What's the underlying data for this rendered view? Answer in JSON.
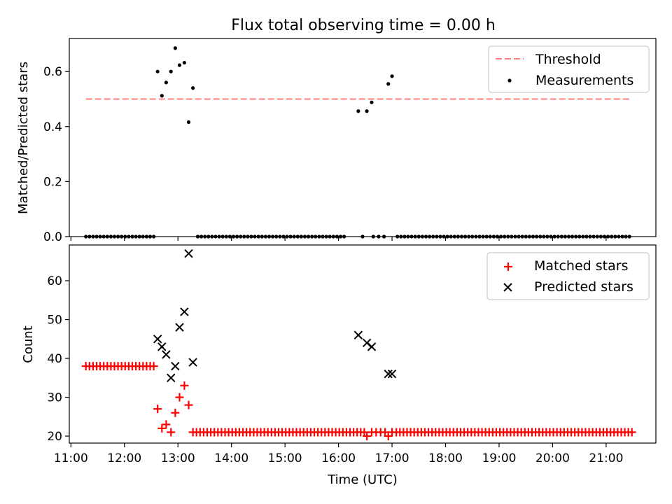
{
  "chart_data": [
    {
      "type": "scatter",
      "title": "Flux total observing time = 0.00 h",
      "ylabel": "Matched/Predicted stars",
      "xlabel": "",
      "xlim": [
        10.97,
        21.93
      ],
      "ylim": [
        0.0,
        0.72
      ],
      "yticks": [
        0.0,
        0.2,
        0.4,
        0.6
      ],
      "ytick_labels": [
        "0.0",
        "0.2",
        "0.4",
        "0.6"
      ],
      "xticks": [
        11,
        12,
        13,
        14,
        15,
        16,
        17,
        18,
        19,
        20,
        21
      ],
      "legend_loc": "upper right",
      "threshold": {
        "name": "Threshold",
        "y": 0.5,
        "x": [
          11.28,
          21.45
        ],
        "color": "#ff7f7f"
      },
      "measurements": {
        "name": "Measurements",
        "color": "#000000",
        "zero_runs": [
          [
            11.28,
            12.55,
            0.0667
          ],
          [
            13.37,
            16.1,
            0.0667
          ],
          [
            17.1,
            21.45,
            0.0667
          ]
        ],
        "points": [
          [
            16.45,
            0
          ],
          [
            16.65,
            0
          ],
          [
            16.75,
            0
          ],
          [
            16.85,
            0
          ],
          [
            12.62,
            0.6
          ],
          [
            12.7,
            0.512
          ],
          [
            12.78,
            0.56
          ],
          [
            12.87,
            0.6
          ],
          [
            12.95,
            0.685
          ],
          [
            13.03,
            0.623
          ],
          [
            13.12,
            0.632
          ],
          [
            13.2,
            0.416
          ],
          [
            13.28,
            0.54
          ],
          [
            16.37,
            0.456
          ],
          [
            16.53,
            0.456
          ],
          [
            16.62,
            0.488
          ],
          [
            16.93,
            0.555
          ],
          [
            17.0,
            0.583
          ]
        ]
      }
    },
    {
      "type": "scatter",
      "title": "",
      "ylabel": "Count",
      "xlabel": "Time (UTC)",
      "xlim": [
        10.97,
        21.93
      ],
      "ylim": [
        18.2,
        69.2
      ],
      "yticks": [
        20,
        30,
        40,
        50,
        60
      ],
      "ytick_labels": [
        "20",
        "30",
        "40",
        "50",
        "60"
      ],
      "xticks": [
        11,
        12,
        13,
        14,
        15,
        16,
        17,
        18,
        19,
        20,
        21
      ],
      "xtick_labels": [
        "11:00",
        "12:00",
        "13:00",
        "14:00",
        "15:00",
        "16:00",
        "17:00",
        "18:00",
        "19:00",
        "20:00",
        "21:00"
      ],
      "legend_loc": "upper right",
      "series": [
        {
          "name": "Matched stars",
          "marker": "+",
          "color": "#ff0000",
          "runs": [
            [
              11.28,
              12.55,
              0.0667,
              38
            ],
            [
              13.28,
              16.45,
              0.0667,
              21
            ],
            [
              16.62,
              16.87,
              0.0833,
              21
            ],
            [
              17.08,
              21.45,
              0.0667,
              21
            ]
          ],
          "points": [
            [
              12.62,
              27
            ],
            [
              12.7,
              22
            ],
            [
              12.78,
              23
            ],
            [
              12.87,
              21
            ],
            [
              12.95,
              26
            ],
            [
              13.03,
              30
            ],
            [
              13.12,
              33
            ],
            [
              13.2,
              28
            ],
            [
              16.53,
              20
            ],
            [
              16.93,
              20
            ],
            [
              17.0,
              21
            ]
          ]
        },
        {
          "name": "Predicted stars",
          "marker": "x",
          "color": "#000000",
          "points": [
            [
              12.62,
              45
            ],
            [
              12.7,
              43
            ],
            [
              12.78,
              41
            ],
            [
              12.87,
              35
            ],
            [
              12.95,
              38
            ],
            [
              13.03,
              48
            ],
            [
              13.12,
              52
            ],
            [
              13.2,
              67
            ],
            [
              13.28,
              39
            ],
            [
              16.37,
              46
            ],
            [
              16.53,
              44
            ],
            [
              16.62,
              43
            ],
            [
              16.93,
              36
            ],
            [
              17.0,
              36
            ]
          ]
        }
      ]
    }
  ]
}
